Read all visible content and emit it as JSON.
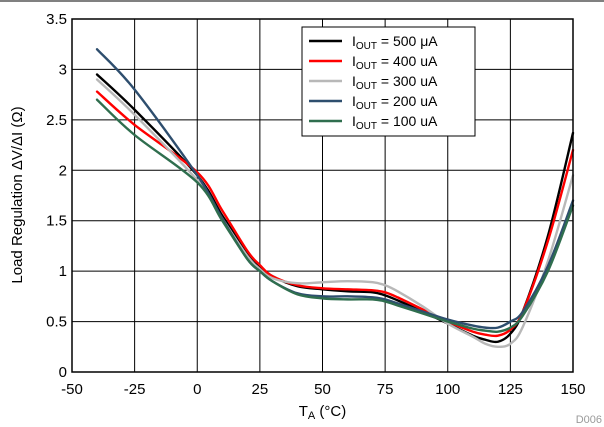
{
  "chart_data": {
    "type": "line",
    "title": "",
    "xlabel": {
      "main": "T",
      "sub": "A",
      "unit": " (°C)"
    },
    "ylabel": "Load Regulation ΔV/ΔI (Ω)",
    "xlim": [
      -50,
      150
    ],
    "ylim": [
      0,
      3.5
    ],
    "xticks": [
      "-50",
      "-25",
      "0",
      "25",
      "50",
      "75",
      "100",
      "125",
      "150"
    ],
    "yticks": [
      "0",
      "0.5",
      "1",
      "1.5",
      "2",
      "2.5",
      "3",
      "3.5"
    ],
    "grid": true,
    "legend_position": "top-right",
    "series": [
      {
        "legend": {
          "main": "I",
          "sub": "OUT",
          "rest": " = 500 μA"
        },
        "color": "#000000",
        "x": [
          -40,
          -25,
          0,
          10,
          20,
          25,
          30,
          40,
          50,
          60,
          70,
          75,
          80,
          90,
          100,
          110,
          115,
          120,
          125,
          130,
          140,
          150
        ],
        "y": [
          2.95,
          2.6,
          1.95,
          1.55,
          1.18,
          1.05,
          0.95,
          0.85,
          0.82,
          0.8,
          0.79,
          0.76,
          0.71,
          0.6,
          0.48,
          0.36,
          0.32,
          0.3,
          0.38,
          0.6,
          1.35,
          2.37
        ]
      },
      {
        "legend": {
          "main": "I",
          "sub": "OUT",
          "rest": " = 400 uA"
        },
        "color": "#ff0000",
        "x": [
          -40,
          -25,
          0,
          10,
          20,
          25,
          30,
          40,
          50,
          60,
          70,
          75,
          80,
          90,
          100,
          110,
          115,
          120,
          125,
          130,
          140,
          150
        ],
        "y": [
          2.78,
          2.45,
          1.98,
          1.6,
          1.2,
          1.06,
          0.95,
          0.86,
          0.83,
          0.82,
          0.81,
          0.79,
          0.74,
          0.62,
          0.5,
          0.4,
          0.37,
          0.36,
          0.42,
          0.6,
          1.3,
          2.2
        ]
      },
      {
        "legend": {
          "main": "I",
          "sub": "OUT",
          "rest": " = 300 uA"
        },
        "color": "#b8b8b8",
        "x": [
          -40,
          -25,
          0,
          10,
          20,
          25,
          30,
          40,
          50,
          60,
          70,
          75,
          80,
          90,
          100,
          110,
          115,
          120,
          125,
          130,
          140,
          150
        ],
        "y": [
          2.9,
          2.55,
          1.9,
          1.52,
          1.15,
          1.02,
          0.93,
          0.88,
          0.89,
          0.9,
          0.89,
          0.86,
          0.8,
          0.65,
          0.48,
          0.35,
          0.28,
          0.25,
          0.28,
          0.45,
          1.1,
          1.95
        ]
      },
      {
        "legend": {
          "main": "I",
          "sub": "OUT",
          "rest": " = 200 uA"
        },
        "color": "#2e4e6e",
        "x": [
          -40,
          -25,
          0,
          10,
          20,
          25,
          30,
          40,
          50,
          60,
          70,
          75,
          80,
          90,
          100,
          110,
          115,
          120,
          125,
          130,
          140,
          150
        ],
        "y": [
          3.2,
          2.8,
          1.95,
          1.52,
          1.12,
          1.0,
          0.9,
          0.78,
          0.75,
          0.75,
          0.74,
          0.72,
          0.68,
          0.6,
          0.52,
          0.46,
          0.44,
          0.44,
          0.5,
          0.6,
          1.05,
          1.7
        ]
      },
      {
        "legend": {
          "main": "I",
          "sub": "OUT",
          "rest": " = 100 uA"
        },
        "color": "#2f6e4e",
        "x": [
          -40,
          -25,
          0,
          10,
          20,
          25,
          30,
          40,
          50,
          60,
          70,
          75,
          80,
          90,
          100,
          110,
          115,
          120,
          125,
          130,
          140,
          150
        ],
        "y": [
          2.7,
          2.35,
          1.88,
          1.5,
          1.12,
          1.0,
          0.9,
          0.77,
          0.73,
          0.72,
          0.72,
          0.7,
          0.66,
          0.58,
          0.5,
          0.43,
          0.41,
          0.4,
          0.44,
          0.56,
          1.0,
          1.65
        ]
      }
    ]
  },
  "footer_code": "D006"
}
